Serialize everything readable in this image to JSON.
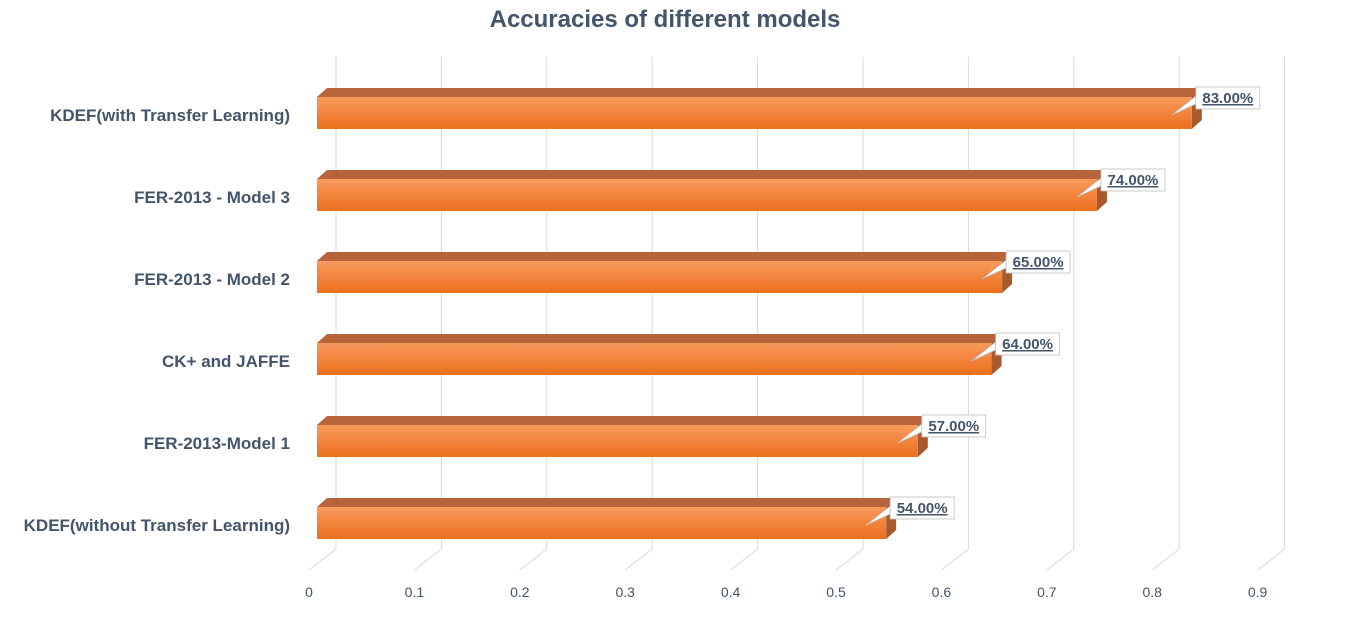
{
  "chart_data": {
    "type": "bar",
    "orientation": "horizontal",
    "title": "Accuracies of different models",
    "categories": [
      "KDEF(with Transfer Learning)",
      "FER-2013 - Model 3",
      "FER-2013 - Model 2",
      "CK+ and JAFFE",
      "FER-2013-Model 1",
      "KDEF(without Transfer Learning)"
    ],
    "values": [
      0.83,
      0.74,
      0.65,
      0.64,
      0.57,
      0.54
    ],
    "data_labels": [
      "83.00%",
      "74.00%",
      "65.00%",
      "64.00%",
      "57.00%",
      "54.00%"
    ],
    "xlim": [
      0,
      0.9
    ],
    "x_ticks": [
      "0",
      "0.1",
      "0.2",
      "0.3",
      "0.4",
      "0.5",
      "0.6",
      "0.7",
      "0.8",
      "0.9"
    ],
    "grid": true,
    "legend": "none",
    "colors": {
      "bar_front_top": "#f89a5e",
      "bar_front_bottom": "#ec6f1c",
      "bar_top_face": "#b8643a",
      "bar_side_face": "#a85a2c",
      "grid": "#d9d9d9",
      "text": "#44546a"
    }
  }
}
